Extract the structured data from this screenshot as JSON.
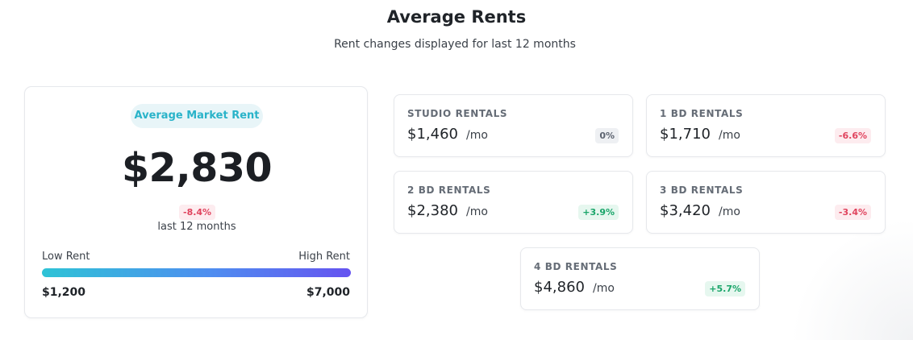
{
  "header": {
    "title": "Average Rents",
    "subtitle": "Rent changes displayed for last 12 months"
  },
  "market": {
    "pill_label": "Average Market Rent",
    "value": "$2,830",
    "change": "-8.4%",
    "period": "last 12 months",
    "range": {
      "low_label": "Low Rent",
      "high_label": "High Rent",
      "low_value": "$1,200",
      "high_value": "$7,000"
    }
  },
  "rentals": [
    {
      "label": "STUDIO RENTALS",
      "value": "$1,460",
      "unit": "/mo",
      "change": "0%",
      "trend": "neutral"
    },
    {
      "label": "1 BD RENTALS",
      "value": "$1,710",
      "unit": "/mo",
      "change": "-6.6%",
      "trend": "negative"
    },
    {
      "label": "2 BD RENTALS",
      "value": "$2,380",
      "unit": "/mo",
      "change": "+3.9%",
      "trend": "positive"
    },
    {
      "label": "3 BD RENTALS",
      "value": "$3,420",
      "unit": "/mo",
      "change": "-3.4%",
      "trend": "negative"
    },
    {
      "label": "4 BD RENTALS",
      "value": "$4,860",
      "unit": "/mo",
      "change": "+5.7%",
      "trend": "positive"
    }
  ],
  "colors": {
    "accent": "#29b3c9",
    "negative": "#e0445e",
    "positive": "#1aa56a",
    "neutral": "#5d6470",
    "range_gradient": [
      "#2ec3d6",
      "#4f8df0",
      "#6553f0"
    ]
  }
}
